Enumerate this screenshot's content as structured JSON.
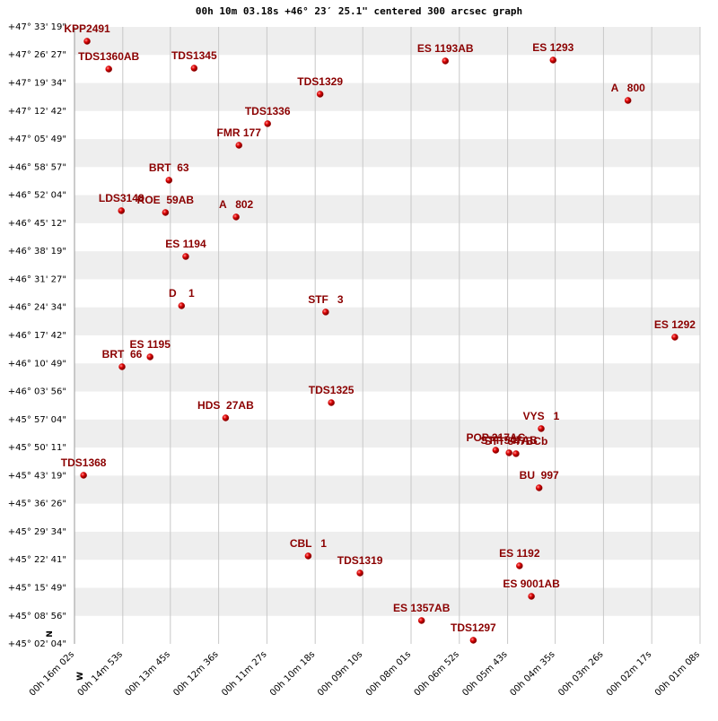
{
  "chart_data": {
    "type": "scatter",
    "title": "00h 10m 03.18s +46° 23′ 25.1\" centered 300 arcsec graph",
    "compass": {
      "north": "N",
      "west": "W"
    },
    "color": "#cc0000",
    "label_color": "#8b0000",
    "grid": true,
    "xlim": [
      962,
      68
    ],
    "ylim": [
      162124,
      171199
    ],
    "xticks": [
      {
        "value": 962,
        "label": "00h 16m 02s"
      },
      {
        "value": 893,
        "label": "00h 14m 53s"
      },
      {
        "value": 825,
        "label": "00h 13m 45s"
      },
      {
        "value": 756,
        "label": "00h 12m 36s"
      },
      {
        "value": 687,
        "label": "00h 11m 27s"
      },
      {
        "value": 618,
        "label": "00h 10m 18s"
      },
      {
        "value": 550,
        "label": "00h 09m 10s"
      },
      {
        "value": 481,
        "label": "00h 08m 01s"
      },
      {
        "value": 412,
        "label": "00h 06m 52s"
      },
      {
        "value": 343,
        "label": "00h 05m 43s"
      },
      {
        "value": 275,
        "label": "00h 04m 35s"
      },
      {
        "value": 206,
        "label": "00h 03m 26s"
      },
      {
        "value": 137,
        "label": "00h 02m 17s"
      },
      {
        "value": 68,
        "label": "00h 01m 08s"
      }
    ],
    "yticks": [
      {
        "value": 171199,
        "label": "+47° 33' 19\""
      },
      {
        "value": 170787,
        "label": "+47° 26' 27\""
      },
      {
        "value": 170374,
        "label": "+47° 19' 34\""
      },
      {
        "value": 169962,
        "label": "+47° 12' 42\""
      },
      {
        "value": 169549,
        "label": "+47° 05' 49\""
      },
      {
        "value": 169137,
        "label": "+46° 58' 57\""
      },
      {
        "value": 168724,
        "label": "+46° 52' 04\""
      },
      {
        "value": 168312,
        "label": "+46° 45' 12\""
      },
      {
        "value": 167899,
        "label": "+46° 38' 19\""
      },
      {
        "value": 167487,
        "label": "+46° 31' 27\""
      },
      {
        "value": 167074,
        "label": "+46° 24' 34\""
      },
      {
        "value": 166662,
        "label": "+46° 17' 42\""
      },
      {
        "value": 166249,
        "label": "+46° 10' 49\""
      },
      {
        "value": 165836,
        "label": "+46° 03' 56\""
      },
      {
        "value": 165424,
        "label": "+45° 57' 04\""
      },
      {
        "value": 165011,
        "label": "+45° 50' 11\""
      },
      {
        "value": 164599,
        "label": "+45° 43' 19\""
      },
      {
        "value": 164186,
        "label": "+45° 36' 26\""
      },
      {
        "value": 163774,
        "label": "+45° 29' 34\""
      },
      {
        "value": 163361,
        "label": "+45° 22' 41\""
      },
      {
        "value": 162949,
        "label": "+45° 15' 49\""
      },
      {
        "value": 162536,
        "label": "+45° 08' 56\""
      },
      {
        "value": 162124,
        "label": "+45° 02' 04\""
      }
    ],
    "labels": [
      "KPP2491",
      "TDS1360AB",
      "TDS1345",
      "ES 1193AB",
      "ES 1293",
      "A   800",
      "TDS1329",
      "TDS1336",
      "FMR 177",
      "BRT  63",
      "LDS3148",
      "ROE  59AB",
      "A   802",
      "ES 1194",
      "D    1",
      "STF   3",
      "ES 1292",
      "ES 1195",
      "BRT  66",
      "TDS1325",
      "HDS  27AB",
      "VYS   1",
      "POP 217AC",
      "STT 547AB",
      "STT 547BCb",
      "TDS1368",
      "BU  997",
      "CBL   1",
      "ES 1192",
      "TDS1319",
      "ES 9001AB",
      "ES 1357AB",
      "TDS1297"
    ],
    "x": [
      944,
      913,
      791,
      432,
      278,
      171,
      611,
      686,
      727,
      827,
      895,
      832,
      731,
      803,
      809,
      603,
      104,
      854,
      894,
      595,
      746,
      295,
      360,
      341,
      331,
      949,
      298,
      628,
      326,
      554,
      309,
      466,
      392
    ],
    "values": [
      170988,
      170579,
      170592,
      170698,
      170711,
      170117,
      170210,
      169775,
      169458,
      168944,
      168495,
      168469,
      168403,
      167822,
      167097,
      167005,
      166635,
      166345,
      166200,
      165672,
      165448,
      165290,
      164973,
      164934,
      164921,
      164604,
      164419,
      163417,
      163272,
      163166,
      162823,
      162467,
      162177
    ]
  }
}
